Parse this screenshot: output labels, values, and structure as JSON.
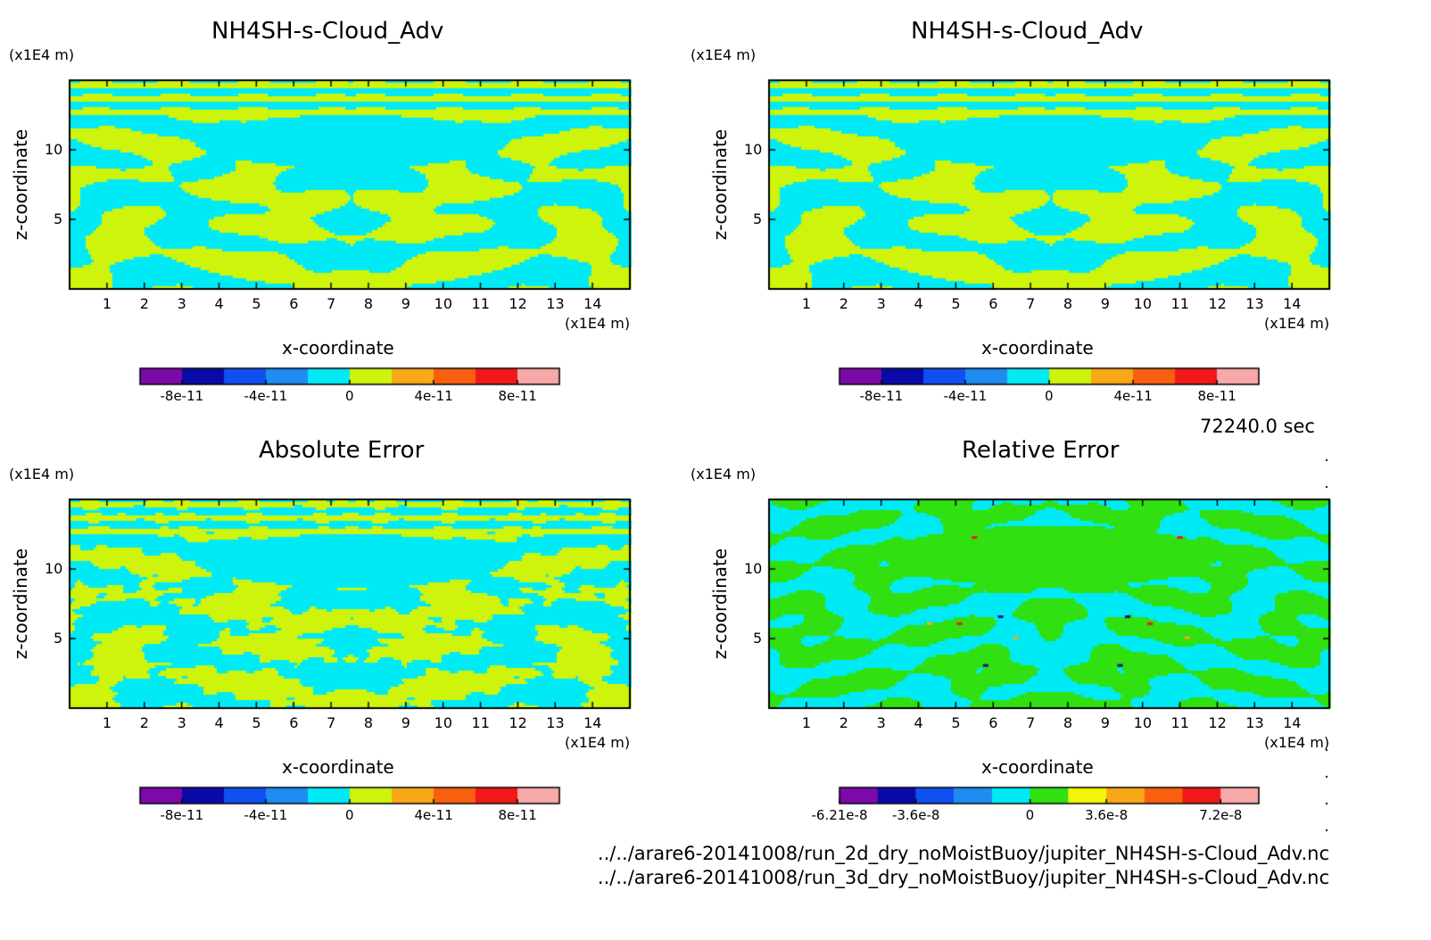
{
  "time_label": "72240.0 sec",
  "files": [
    "../../arare6-20141008/run_2d_dry_noMoistBuoy/jupiter_NH4SH-s-Cloud_Adv.nc",
    "../../arare6-20141008/run_3d_dry_noMoistBuoy/jupiter_NH4SH-s-Cloud_Adv.nc"
  ],
  "colors": {
    "purple": "#7b0aa8",
    "navy": "#0a0aa8",
    "blue": "#1050f0",
    "azure": "#1e8cf0",
    "cyan": "#00eaf6",
    "lime": "#cdf40a",
    "green": "#30e010",
    "yellow": "#f4f40a",
    "orange": "#f8a818",
    "darkorange": "#f86010",
    "red": "#f01818",
    "pink": "#f8a8a8"
  },
  "chart_data": [
    {
      "type": "heatmap",
      "title": "NH4SH-s-Cloud_Adv",
      "xlabel": "x-coordinate",
      "ylabel": "z-coordinate",
      "x_unit": "(x1E4 m)",
      "y_unit": "(x1E4 m)",
      "xlim": [
        0,
        15
      ],
      "ylim": [
        0,
        15
      ],
      "x_ticks": [
        1,
        2,
        3,
        4,
        5,
        6,
        7,
        8,
        9,
        10,
        11,
        12,
        13,
        14
      ],
      "y_ticks": [
        5,
        10
      ],
      "colorbar": {
        "colors": [
          "purple",
          "navy",
          "blue",
          "azure",
          "cyan",
          "lime",
          "orange",
          "darkorange",
          "red",
          "pink"
        ],
        "labels": [
          "-8e-11",
          "-4e-11",
          "0",
          "4e-11",
          "8e-11"
        ],
        "label_positions": [
          1,
          3,
          5,
          7,
          9
        ]
      },
      "field": "symmetric",
      "palette": [
        "cyan",
        "lime"
      ]
    },
    {
      "type": "heatmap",
      "title": "NH4SH-s-Cloud_Adv",
      "xlabel": "x-coordinate",
      "ylabel": "z-coordinate",
      "x_unit": "(x1E4 m)",
      "y_unit": "(x1E4 m)",
      "xlim": [
        0,
        15
      ],
      "ylim": [
        0,
        15
      ],
      "x_ticks": [
        1,
        2,
        3,
        4,
        5,
        6,
        7,
        8,
        9,
        10,
        11,
        12,
        13,
        14
      ],
      "y_ticks": [
        5,
        10
      ],
      "colorbar": {
        "colors": [
          "purple",
          "navy",
          "blue",
          "azure",
          "cyan",
          "lime",
          "orange",
          "darkorange",
          "red",
          "pink"
        ],
        "labels": [
          "-8e-11",
          "-4e-11",
          "0",
          "4e-11",
          "8e-11"
        ],
        "label_positions": [
          1,
          3,
          5,
          7,
          9
        ]
      },
      "field": "symmetric",
      "palette": [
        "cyan",
        "lime"
      ]
    },
    {
      "type": "heatmap",
      "title": "Absolute Error",
      "xlabel": "x-coordinate",
      "ylabel": "z-coordinate",
      "x_unit": "(x1E4 m)",
      "y_unit": "(x1E4 m)",
      "xlim": [
        0,
        15
      ],
      "ylim": [
        0,
        15
      ],
      "x_ticks": [
        1,
        2,
        3,
        4,
        5,
        6,
        7,
        8,
        9,
        10,
        11,
        12,
        13,
        14
      ],
      "y_ticks": [
        5,
        10
      ],
      "colorbar": {
        "colors": [
          "purple",
          "navy",
          "blue",
          "azure",
          "cyan",
          "lime",
          "orange",
          "darkorange",
          "red",
          "pink"
        ],
        "labels": [
          "-8e-11",
          "-4e-11",
          "0",
          "4e-11",
          "8e-11"
        ],
        "label_positions": [
          1,
          3,
          5,
          7,
          9
        ]
      },
      "field": "noisy",
      "palette": [
        "cyan",
        "lime"
      ]
    },
    {
      "type": "heatmap",
      "title": "Relative Error",
      "xlabel": "x-coordinate",
      "ylabel": "z-coordinate",
      "x_unit": "(x1E4 m)",
      "y_unit": "(x1E4 m)",
      "xlim": [
        0,
        15
      ],
      "ylim": [
        0,
        15
      ],
      "x_ticks": [
        1,
        2,
        3,
        4,
        5,
        6,
        7,
        8,
        9,
        10,
        11,
        12,
        13,
        14
      ],
      "y_ticks": [
        5,
        10
      ],
      "colorbar": {
        "colors": [
          "purple",
          "navy",
          "blue",
          "azure",
          "cyan",
          "green",
          "yellow",
          "orange",
          "darkorange",
          "red",
          "pink"
        ],
        "labels": [
          "-6.21e-8",
          "-3.6e-8",
          "0",
          "3.6e-8",
          "7.2e-8"
        ],
        "label_positions": [
          0,
          2,
          5,
          7,
          10
        ]
      },
      "field": "relative",
      "palette": [
        "cyan",
        "green"
      ]
    }
  ]
}
